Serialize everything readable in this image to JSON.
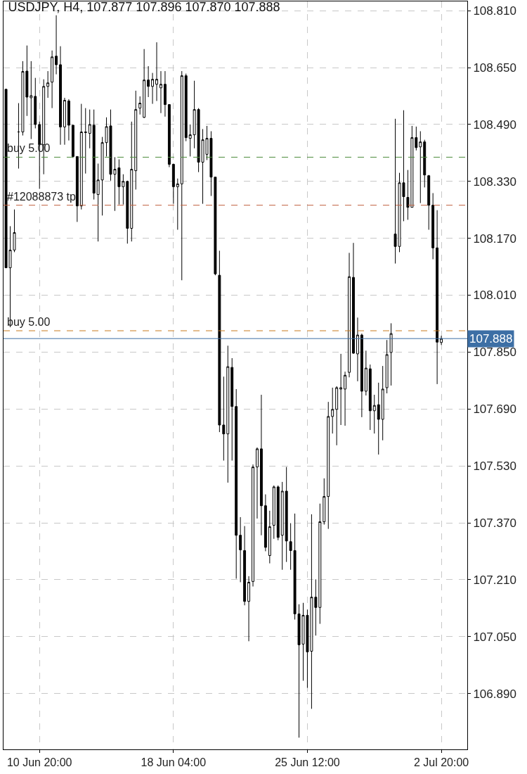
{
  "chart_data": {
    "type": "candlestick",
    "title": "USDJPY, H4, 107.877 107.896 107.870 107.888",
    "categories": [
      null,
      null,
      null,
      null,
      null,
      null,
      null,
      null,
      "10 Jun 20:00",
      null,
      null,
      null,
      null,
      null,
      null,
      null,
      null,
      null,
      null,
      null,
      null,
      null,
      null,
      null,
      null,
      null,
      null,
      null,
      null,
      null,
      null,
      null,
      null,
      null,
      null,
      null,
      null,
      null,
      null,
      null,
      "18 Jun 04:00",
      null,
      null,
      null,
      null,
      null,
      null,
      null,
      null,
      null,
      null,
      null,
      null,
      null,
      null,
      null,
      null,
      null,
      null,
      null,
      null,
      null,
      null,
      null,
      null,
      null,
      null,
      null,
      null,
      null,
      null,
      null,
      "25 Jun 12:00",
      null,
      null,
      null,
      null,
      null,
      null,
      null,
      null,
      null,
      null,
      null,
      null,
      null,
      null,
      null,
      null,
      null,
      null,
      null,
      null,
      null,
      null,
      null,
      null,
      null,
      null,
      null,
      null,
      null,
      null,
      null,
      "2 Jul 20:00"
    ],
    "ohlc": [
      [
        108.589,
        108.589,
        108.087,
        108.087
      ],
      [
        108.087,
        108.204,
        107.92,
        108.137
      ],
      [
        108.137,
        108.251,
        108.131,
        108.186
      ],
      [
        108.469,
        108.55,
        108.366,
        108.469
      ],
      [
        108.469,
        108.668,
        108.459,
        108.639
      ],
      [
        108.64,
        108.712,
        108.514,
        108.567
      ],
      [
        108.565,
        108.668,
        108.449,
        108.571
      ],
      [
        108.569,
        108.621,
        108.479,
        108.49
      ],
      [
        108.49,
        108.498,
        108.309,
        108.433
      ],
      [
        108.433,
        108.617,
        108.35,
        108.597
      ],
      [
        108.597,
        108.64,
        108.565,
        108.607
      ],
      [
        108.609,
        108.698,
        108.536,
        108.68
      ],
      [
        108.682,
        108.797,
        108.631,
        108.658
      ],
      [
        108.658,
        108.71,
        108.433,
        108.483
      ],
      [
        108.483,
        108.565,
        108.433,
        108.558
      ],
      [
        108.556,
        108.561,
        108.445,
        108.488
      ],
      [
        108.488,
        108.488,
        108.396,
        108.4
      ],
      [
        108.4,
        108.4,
        108.216,
        108.261
      ],
      [
        108.261,
        108.548,
        108.251,
        108.469
      ],
      [
        108.467,
        108.536,
        108.352,
        108.469
      ],
      [
        108.465,
        108.532,
        108.423,
        108.49
      ],
      [
        108.488,
        108.532,
        108.279,
        108.297
      ],
      [
        108.293,
        108.38,
        108.161,
        108.334
      ],
      [
        108.334,
        108.455,
        108.234,
        108.439
      ],
      [
        108.439,
        108.51,
        108.4,
        108.484
      ],
      [
        108.486,
        108.532,
        108.332,
        108.35
      ],
      [
        108.35,
        108.398,
        108.247,
        108.364
      ],
      [
        108.368,
        108.392,
        108.265,
        108.315
      ],
      [
        108.315,
        108.35,
        108.265,
        108.33
      ],
      [
        108.33,
        108.332,
        108.155,
        108.198
      ],
      [
        108.198,
        108.498,
        108.161,
        108.364
      ],
      [
        108.36,
        108.585,
        108.307,
        108.532
      ],
      [
        108.536,
        108.569,
        108.518,
        108.55
      ],
      [
        108.51,
        108.702,
        108.508,
        108.615
      ],
      [
        108.615,
        108.654,
        108.567,
        108.597
      ],
      [
        108.597,
        108.635,
        108.548,
        108.617
      ],
      [
        108.603,
        108.721,
        108.556,
        108.617
      ],
      [
        108.593,
        108.64,
        108.522,
        108.603
      ],
      [
        108.603,
        108.64,
        108.512,
        108.546
      ],
      [
        108.546,
        108.546,
        108.37,
        108.378
      ],
      [
        108.378,
        108.38,
        108.267,
        108.315
      ],
      [
        108.315,
        108.338,
        108.194,
        108.323
      ],
      [
        108.323,
        108.64,
        108.052,
        108.627
      ],
      [
        108.627,
        108.633,
        108.443,
        108.453
      ],
      [
        108.451,
        108.49,
        108.4,
        108.461
      ],
      [
        108.461,
        108.613,
        108.423,
        108.532
      ],
      [
        108.532,
        108.536,
        108.356,
        108.384
      ],
      [
        108.384,
        108.477,
        108.267,
        108.447
      ],
      [
        108.406,
        108.486,
        108.39,
        108.451
      ],
      [
        108.451,
        108.471,
        108.289,
        108.342
      ],
      [
        108.342,
        108.342,
        108.066,
        108.07
      ],
      [
        108.066,
        108.135,
        107.625,
        107.645
      ],
      [
        107.645,
        107.781,
        107.545,
        107.62
      ],
      [
        107.62,
        107.868,
        107.483,
        107.809
      ],
      [
        107.807,
        107.833,
        107.545,
        107.697
      ],
      [
        107.697,
        107.746,
        107.213,
        107.335
      ],
      [
        107.335,
        107.386,
        107.203,
        107.294
      ],
      [
        107.292,
        107.361,
        107.138,
        107.149
      ],
      [
        107.149,
        107.22,
        107.037,
        107.203
      ],
      [
        107.205,
        107.534,
        107.191,
        107.527
      ],
      [
        107.527,
        107.582,
        107.382,
        107.578
      ],
      [
        107.578,
        107.73,
        107.335,
        107.418
      ],
      [
        107.418,
        107.45,
        107.29,
        107.301
      ],
      [
        107.278,
        107.404,
        107.256,
        107.359
      ],
      [
        107.363,
        107.475,
        107.325,
        107.471
      ],
      [
        107.471,
        107.475,
        107.321,
        107.329
      ],
      [
        107.335,
        107.485,
        107.238,
        107.459
      ],
      [
        107.459,
        107.527,
        107.26,
        107.319
      ],
      [
        107.317,
        107.369,
        107.238,
        107.292
      ],
      [
        107.292,
        107.396,
        107.098,
        107.114
      ],
      [
        107.114,
        107.141,
        106.766,
        107.027
      ],
      [
        107.029,
        107.145,
        106.926,
        107.11
      ],
      [
        107.11,
        107.126,
        106.906,
        107.007
      ],
      [
        107.009,
        107.394,
        106.847,
        107.161
      ],
      [
        107.161,
        107.211,
        107.053,
        107.132
      ],
      [
        107.132,
        107.424,
        107.086,
        107.373
      ],
      [
        107.373,
        107.495,
        107.365,
        107.444
      ],
      [
        107.444,
        107.71,
        107.353,
        107.669
      ],
      [
        107.669,
        107.75,
        107.621,
        107.689
      ],
      [
        107.689,
        107.754,
        107.588,
        107.75
      ],
      [
        107.746,
        107.845,
        107.645,
        107.75
      ],
      [
        107.746,
        107.795,
        107.643,
        107.785
      ],
      [
        107.793,
        108.129,
        107.779,
        108.062
      ],
      [
        108.06,
        108.157,
        107.845,
        107.847
      ],
      [
        107.845,
        107.947,
        107.768,
        107.898
      ],
      [
        107.898,
        107.902,
        107.667,
        107.74
      ],
      [
        107.74,
        107.854,
        107.728,
        107.805
      ],
      [
        107.803,
        107.815,
        107.631,
        107.685
      ],
      [
        107.685,
        107.73,
        107.621,
        107.7
      ],
      [
        107.702,
        107.764,
        107.562,
        107.661
      ],
      [
        107.661,
        107.811,
        107.602,
        107.746
      ],
      [
        107.75,
        107.884,
        107.734,
        107.843
      ],
      [
        107.849,
        107.931,
        107.756,
        107.902
      ],
      [
        108.182,
        108.506,
        108.099,
        108.147
      ],
      [
        108.147,
        108.354,
        108.131,
        108.326
      ],
      [
        108.326,
        108.53,
        108.218,
        108.287
      ],
      [
        108.285,
        108.362,
        108.222,
        108.257
      ],
      [
        108.257,
        108.486,
        108.257,
        108.453
      ],
      [
        108.453,
        108.484,
        108.417,
        108.425
      ],
      [
        108.427,
        108.471,
        108.269,
        108.441
      ],
      [
        108.441,
        108.447,
        108.313,
        108.348
      ],
      [
        108.346,
        108.348,
        108.194,
        108.263
      ],
      [
        108.263,
        108.297,
        108.111,
        108.143
      ],
      [
        108.143,
        108.249,
        107.76,
        107.878
      ],
      [
        107.877,
        107.896,
        107.87,
        107.888
      ]
    ],
    "ylim": [
      106.733,
      108.836
    ],
    "yticks": [
      {
        "value": 106.89,
        "label": "106.890"
      },
      {
        "value": 107.05,
        "label": "107.050"
      },
      {
        "value": 107.21,
        "label": "107.210"
      },
      {
        "value": 107.37,
        "label": "107.370"
      },
      {
        "value": 107.53,
        "label": "107.530"
      },
      {
        "value": 107.69,
        "label": "107.690"
      },
      {
        "value": 107.85,
        "label": "107.850"
      },
      {
        "value": 108.01,
        "label": "108.010"
      },
      {
        "value": 108.17,
        "label": "108.170"
      },
      {
        "value": 108.33,
        "label": "108.330"
      },
      {
        "value": 108.49,
        "label": "108.490"
      },
      {
        "value": 108.65,
        "label": "108.650"
      },
      {
        "value": 108.81,
        "label": "108.810"
      }
    ],
    "ref_lines": [
      {
        "axis": "y",
        "value": 108.398,
        "label": "buy 5.00",
        "color": "#4a8a3a",
        "line_style": "dashed"
      },
      {
        "axis": "y",
        "value": 108.263,
        "label": "#12088873 tp",
        "color": "#c0603f",
        "line_style": "dashed"
      },
      {
        "axis": "y",
        "value": 107.91,
        "label": "buy 5.00",
        "color": "#c87a1e",
        "line_style": "dashed"
      },
      {
        "axis": "y",
        "value": 107.888,
        "label": "107.888",
        "color": "#3d6fa5",
        "line_style": "solid"
      }
    ],
    "grid": true
  }
}
